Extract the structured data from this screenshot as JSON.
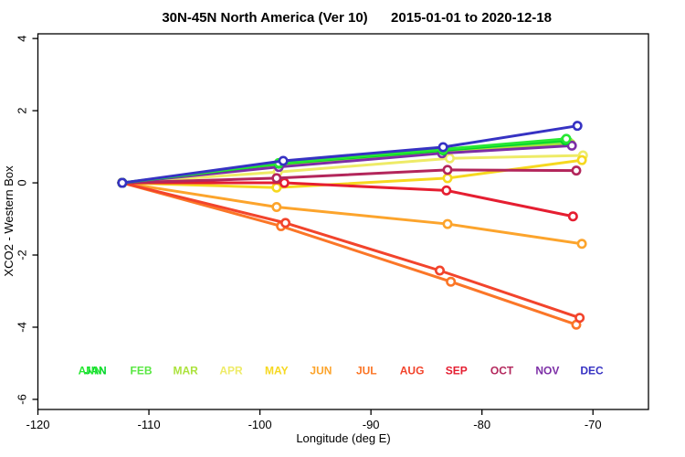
{
  "header": {
    "title_parts": [
      "30N-45N North America (Ver 10)",
      "2015-01-01 to 2020-12-18"
    ]
  },
  "chart_data": {
    "type": "line",
    "title": "30N-45N North America (Ver 10)   2015-01-01 to 2020-12-18",
    "xlabel": "Longitude (deg E)",
    "ylabel": "XCO2 - Western Box",
    "xlim": [
      -120,
      -65
    ],
    "ylim": [
      -6.28,
      4.13
    ],
    "xticks": [
      -120,
      -110,
      -100,
      -90,
      -80,
      -70
    ],
    "yticks": [
      4,
      2,
      0,
      -2,
      -4,
      -6
    ],
    "grid": false,
    "legend_position": "inside-bottom-month-labels",
    "marker": "open-circle",
    "label_row_value": -5.3,
    "series": [
      {
        "name": "FEB",
        "color": "#58e742",
        "label_lon": -110.7,
        "points": [
          [
            -112.4,
            0
          ],
          [
            -98.3,
            0.5
          ],
          [
            -83.5,
            0.88
          ],
          [
            -72.2,
            1.13
          ]
        ]
      },
      {
        "name": "MAR",
        "color": "#abe23b",
        "label_lon": -106.7,
        "points": [
          [
            -112.4,
            0
          ],
          [
            -98.3,
            0.47
          ],
          [
            -83.5,
            0.85
          ],
          [
            -72.0,
            1.08
          ]
        ]
      },
      {
        "name": "APR",
        "color": "#eeeb67",
        "label_lon": -102.6,
        "points": [
          [
            -112.4,
            0
          ],
          [
            -98.4,
            0.3
          ],
          [
            -82.9,
            0.68
          ],
          [
            -70.9,
            0.76
          ]
        ]
      },
      {
        "name": "MAY",
        "color": "#f6d81f",
        "label_lon": -98.5,
        "points": [
          [
            -112.4,
            0
          ],
          [
            -98.5,
            -0.13
          ],
          [
            -83.1,
            0.13
          ],
          [
            -71.0,
            0.63
          ]
        ]
      },
      {
        "name": "JUN",
        "color": "#fca42c",
        "label_lon": -94.5,
        "points": [
          [
            -112.4,
            0
          ],
          [
            -98.5,
            -0.67
          ],
          [
            -83.1,
            -1.14
          ],
          [
            -71.0,
            -1.69
          ]
        ]
      },
      {
        "name": "JUL",
        "color": "#fb7627",
        "label_lon": -90.4,
        "points": [
          [
            -112.4,
            0
          ],
          [
            -98.1,
            -1.2
          ],
          [
            -82.8,
            -2.74
          ],
          [
            -71.5,
            -3.93
          ]
        ]
      },
      {
        "name": "AUG",
        "color": "#f2442c",
        "label_lon": -86.3,
        "points": [
          [
            -112.4,
            0
          ],
          [
            -97.7,
            -1.11
          ],
          [
            -83.8,
            -2.43
          ],
          [
            -71.2,
            -3.74
          ]
        ]
      },
      {
        "name": "SEP",
        "color": "#e51e31",
        "label_lon": -82.3,
        "points": [
          [
            -112.4,
            0
          ],
          [
            -97.8,
            0.0
          ],
          [
            -83.2,
            -0.21
          ],
          [
            -71.8,
            -0.93
          ]
        ]
      },
      {
        "name": "OCT",
        "color": "#b3265b",
        "label_lon": -78.2,
        "points": [
          [
            -112.4,
            0
          ],
          [
            -98.5,
            0.13
          ],
          [
            -83.1,
            0.36
          ],
          [
            -71.5,
            0.34
          ]
        ]
      },
      {
        "name": "NOV",
        "color": "#7c2ea6",
        "label_lon": -74.1,
        "points": [
          [
            -112.4,
            0
          ],
          [
            -98.3,
            0.44
          ],
          [
            -83.6,
            0.82
          ],
          [
            -71.9,
            1.03
          ]
        ]
      },
      {
        "name": "JAN",
        "color": "#00d42a",
        "label_lon": -114.8,
        "points": [
          [
            -112.4,
            0
          ],
          [
            -98.3,
            0.53
          ],
          [
            -83.5,
            0.9
          ],
          [
            -72.5,
            1.18
          ]
        ]
      },
      {
        "name": "ANN",
        "color": "#27e833",
        "label_lon": -115.3,
        "points": [
          [
            -112.4,
            0
          ],
          [
            -98.3,
            0.55
          ],
          [
            -83.5,
            0.93
          ],
          [
            -72.4,
            1.22
          ]
        ]
      },
      {
        "name": "DEC",
        "color": "#3632c3",
        "label_lon": -70.1,
        "points": [
          [
            -112.4,
            0
          ],
          [
            -97.9,
            0.61
          ],
          [
            -83.5,
            0.99
          ],
          [
            -71.4,
            1.58
          ]
        ]
      }
    ]
  }
}
